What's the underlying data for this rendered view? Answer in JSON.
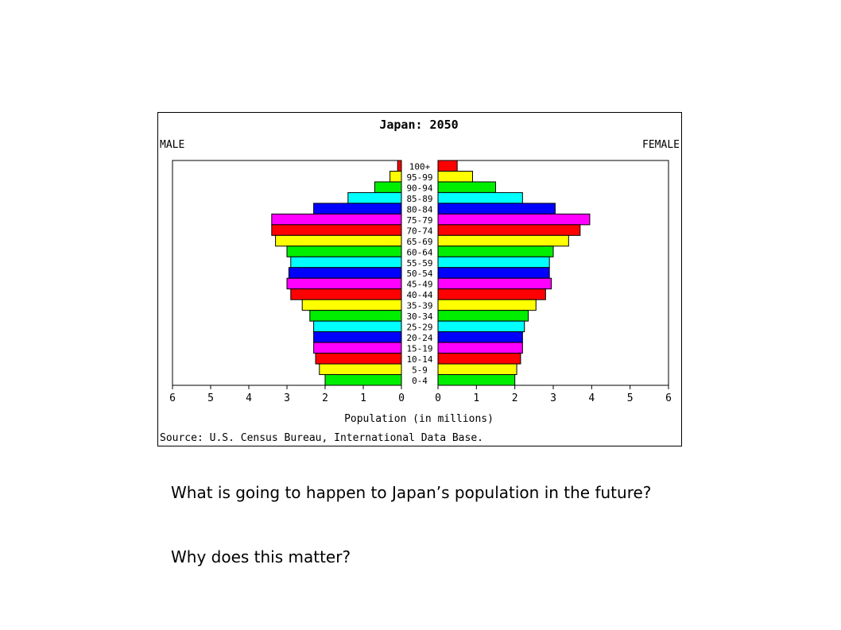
{
  "chart_data": {
    "type": "bar",
    "orientation": "horizontal",
    "title": "Japan: 2050",
    "left_label": "MALE",
    "right_label": "FEMALE",
    "xlabel": "Population (in millions)",
    "source": "Source: U.S. Census Bureau, International Data Base.",
    "xlim": [
      0,
      6
    ],
    "x_ticks": [
      "0",
      "1",
      "2",
      "3",
      "4",
      "5",
      "6"
    ],
    "grid": false,
    "categories": [
      "100+",
      "95-99",
      "90-94",
      "85-89",
      "80-84",
      "75-79",
      "70-74",
      "65-69",
      "60-64",
      "55-59",
      "50-54",
      "45-49",
      "40-44",
      "35-39",
      "30-34",
      "25-29",
      "20-24",
      "15-19",
      "10-14",
      "5-9",
      "0-4"
    ],
    "series": [
      {
        "name": "MALE",
        "values": [
          0.1,
          0.3,
          0.7,
          1.4,
          2.3,
          3.4,
          3.4,
          3.3,
          3.0,
          2.9,
          2.95,
          3.0,
          2.9,
          2.6,
          2.4,
          2.3,
          2.3,
          2.3,
          2.25,
          2.15,
          2.0
        ]
      },
      {
        "name": "FEMALE",
        "values": [
          0.5,
          0.9,
          1.5,
          2.2,
          3.05,
          3.95,
          3.7,
          3.4,
          3.0,
          2.9,
          2.9,
          2.95,
          2.8,
          2.55,
          2.35,
          2.25,
          2.2,
          2.2,
          2.15,
          2.05,
          2.0
        ]
      }
    ],
    "bar_colors": [
      "#ff0000",
      "#ffff00",
      "#00ee00",
      "#00ffff",
      "#0000ff",
      "#ff00ff"
    ]
  },
  "questions": {
    "q1": "What is going to happen to Japan’s population in the future?",
    "q2": "Why does this matter?"
  }
}
